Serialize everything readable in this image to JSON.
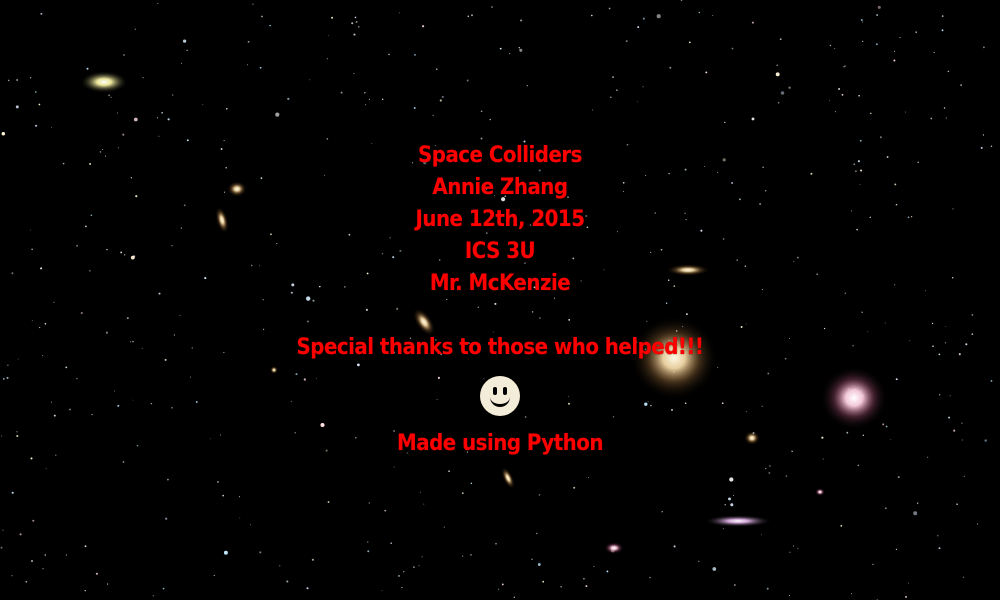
{
  "background": {
    "type": "starfield-with-galaxies",
    "colors": {
      "sky": "#000000",
      "text": "#ff0000",
      "smiley": "#f3ecd8"
    }
  },
  "credits": {
    "title": "Space Colliders",
    "author": "Annie Zhang",
    "date": "June 12th, 2015",
    "course": "ICS 3U",
    "teacher": "Mr. McKenzie",
    "thanks": "Special thanks to those who helped!!!",
    "smiley_icon": "smiley-face-icon",
    "made_with": "Made using Python"
  }
}
